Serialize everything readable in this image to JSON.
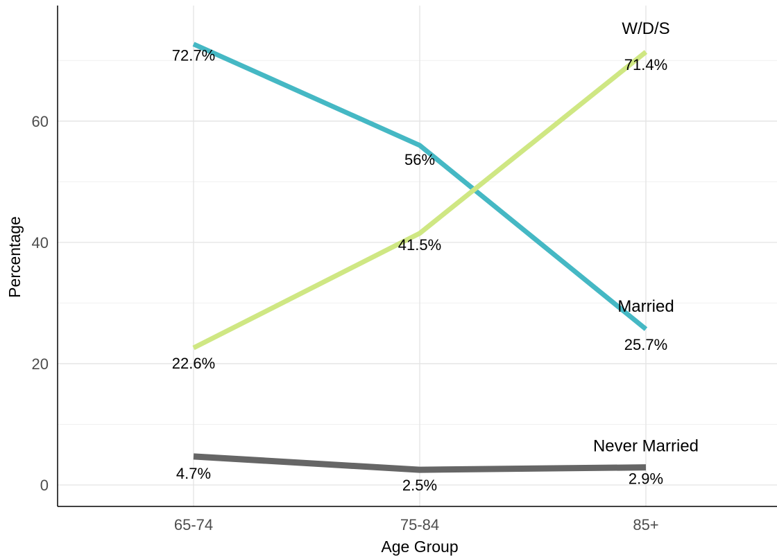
{
  "chart_data": {
    "type": "line",
    "xlabel": "Age Group",
    "ylabel": "Percentage",
    "categories": [
      "65-74",
      "75-84",
      "85+"
    ],
    "ylim": [
      -3.5,
      79
    ],
    "yticks": [
      0,
      20,
      40,
      60
    ],
    "grid": true,
    "legend": "none (direct labels at line ends)",
    "series": [
      {
        "name": "Married",
        "color": "#45b8c4",
        "values": [
          72.7,
          56,
          25.7
        ],
        "labels": [
          "72.7%",
          "56%",
          "25.7%"
        ]
      },
      {
        "name": "W/D/S",
        "color": "#cfe783",
        "values": [
          22.6,
          41.5,
          71.4
        ],
        "labels": [
          "22.6%",
          "41.5%",
          "71.4%"
        ]
      },
      {
        "name": "Never Married",
        "color": "#666666",
        "values": [
          4.7,
          2.5,
          2.9
        ],
        "labels": [
          "4.7%",
          "2.5%",
          "2.9%"
        ]
      }
    ]
  }
}
